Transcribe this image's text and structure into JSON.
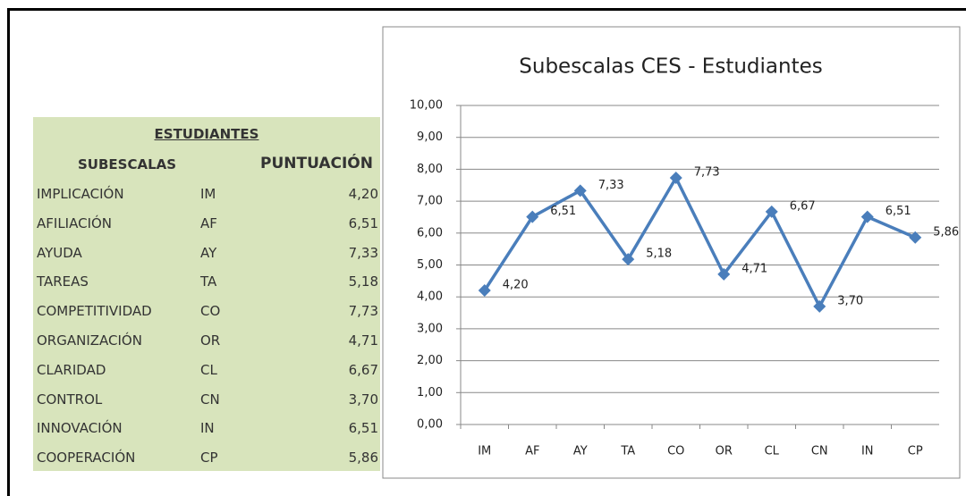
{
  "table": {
    "title": "ESTUDIANTES",
    "headers": [
      "SUBESCALAS",
      "PUNTUACIÓN"
    ],
    "rows": [
      [
        "IMPLICACIÓN",
        "IM",
        "4,20"
      ],
      [
        "AFILIACIÓN",
        "AF",
        "6,51"
      ],
      [
        "AYUDA",
        "AY",
        "7,33"
      ],
      [
        "TAREAS",
        "TA",
        "5,18"
      ],
      [
        "COMPETITIVIDAD",
        "CO",
        "7,73"
      ],
      [
        "ORGANIZACIÓN",
        "OR",
        "4,71"
      ],
      [
        "CLARIDAD",
        "CL",
        "6,67"
      ],
      [
        "CONTROL",
        "CN",
        "3,70"
      ],
      [
        "INNOVACIÓN",
        "IN",
        "6,51"
      ],
      [
        "COOPERACIÓN",
        "CP",
        "5,86"
      ]
    ]
  },
  "chart_data": {
    "type": "line",
    "title": "Subescalas CES - Estudiantes",
    "categories": [
      "IM",
      "AF",
      "AY",
      "TA",
      "CO",
      "OR",
      "CL",
      "CN",
      "IN",
      "CP"
    ],
    "series": [
      {
        "name": "Estudiantes",
        "color": "#4a7ebb",
        "values": [
          4.2,
          6.51,
          7.33,
          5.18,
          7.73,
          4.71,
          6.67,
          3.7,
          6.51,
          5.86
        ],
        "value_labels": [
          "4,20",
          "6,51",
          "7,33",
          "5,18",
          "7,73",
          "4,71",
          "6,67",
          "3,70",
          "6,51",
          "5,86"
        ]
      }
    ],
    "ylim": [
      0,
      10
    ],
    "yticks": [
      {
        "value": 0,
        "label": "0,00"
      },
      {
        "value": 1,
        "label": "1,00"
      },
      {
        "value": 2,
        "label": "2,00"
      },
      {
        "value": 3,
        "label": "3,00"
      },
      {
        "value": 4,
        "label": "4,00"
      },
      {
        "value": 5,
        "label": "5,00"
      },
      {
        "value": 6,
        "label": "6,00"
      },
      {
        "value": 7,
        "label": "7,00"
      },
      {
        "value": 8,
        "label": "8,00"
      },
      {
        "value": 9,
        "label": "9,00"
      },
      {
        "value": 10,
        "label": "10,00"
      }
    ],
    "grid": true
  }
}
